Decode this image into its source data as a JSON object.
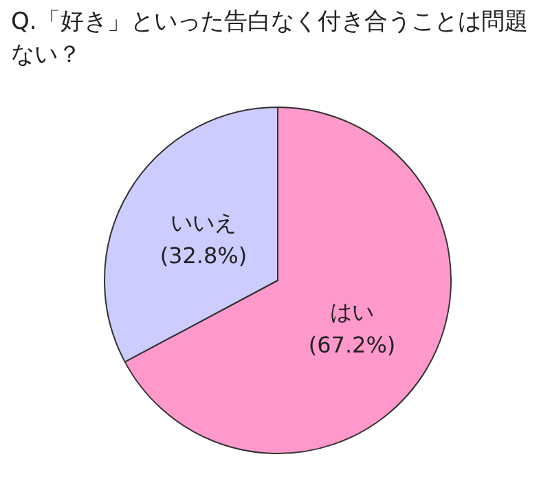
{
  "chart_data": {
    "type": "pie",
    "title": "Q.「好き」といった告白なく付き合うことは問題ない？",
    "categories": [
      "はい",
      "いいえ"
    ],
    "values": [
      67.2,
      32.8
    ],
    "value_labels": [
      "(67.2%)",
      "(32.8%)"
    ],
    "colors": [
      "#ff99cc",
      "#ccccff"
    ]
  }
}
